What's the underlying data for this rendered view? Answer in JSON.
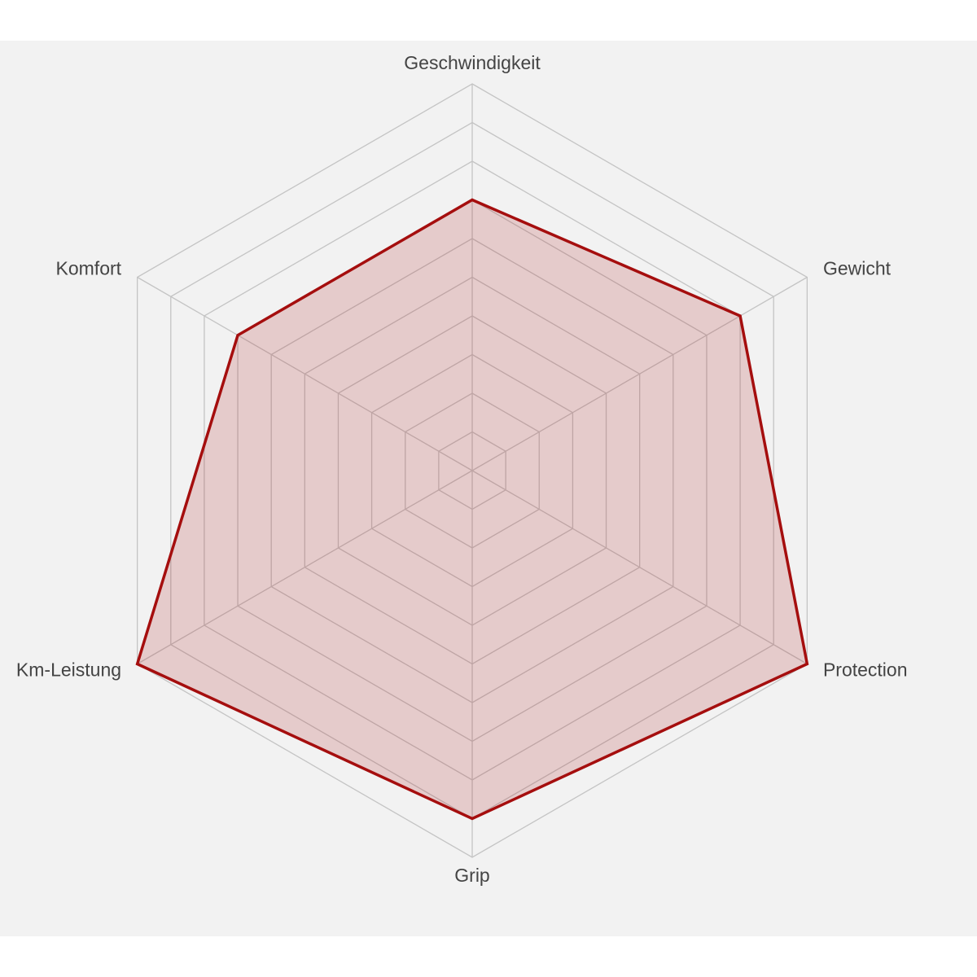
{
  "chart_data": {
    "type": "radar",
    "categories": [
      "Geschwindigkeit",
      "Gewicht",
      "Protection",
      "Grip",
      "Km-Leistung",
      "Komfort"
    ],
    "series": [
      {
        "color": "#a50e0e",
        "values": [
          7,
          8,
          10,
          9,
          10,
          7
        ]
      }
    ],
    "rlim": [
      0,
      10
    ],
    "rticks": [
      1,
      2,
      3,
      4,
      5,
      6,
      7,
      8,
      9,
      10
    ],
    "grid": true
  }
}
